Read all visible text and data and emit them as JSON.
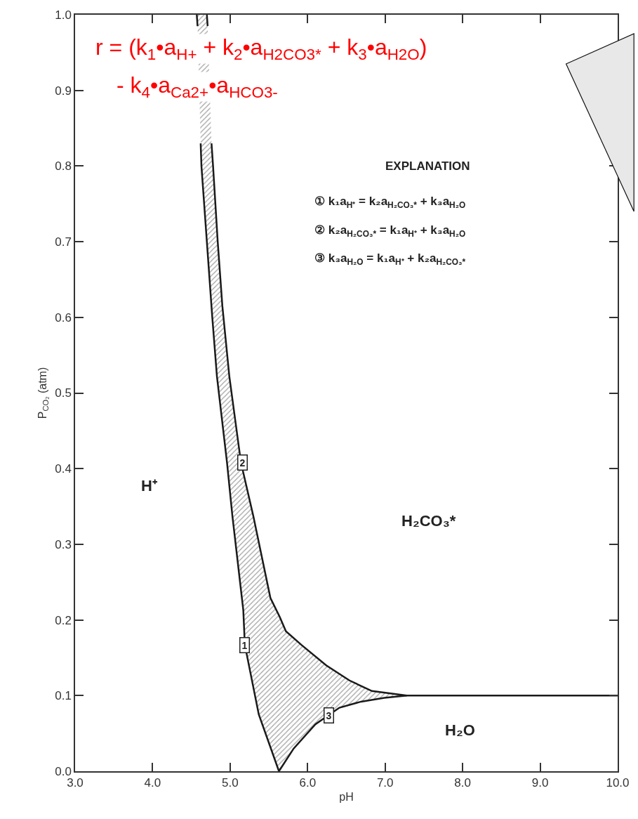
{
  "chart_data": {
    "type": "line",
    "xlabel": "pH",
    "ylabel": "P$_{CO₂}$ (atm)",
    "xlim": [
      3.0,
      10.0
    ],
    "ylim": [
      0.0,
      1.0
    ],
    "xticks": [
      {
        "value": 3,
        "label": "3.0"
      },
      {
        "value": 4,
        "label": "4.0"
      },
      {
        "value": 5,
        "label": "5.0"
      },
      {
        "value": 6,
        "label": "6.0"
      },
      {
        "value": 7,
        "label": "7.0"
      },
      {
        "value": 8,
        "label": "8.0"
      },
      {
        "value": 9,
        "label": "9.0"
      },
      {
        "value": 10,
        "label": "10.0"
      }
    ],
    "yticks": [
      {
        "value": 0,
        "label": "0.0"
      },
      0.1,
      0.2,
      0.3,
      0.4,
      0.5,
      0.6,
      0.7,
      0.8,
      0.9,
      {
        "value": 1,
        "label": "1.0"
      }
    ],
    "marker": "none",
    "line_style": "solid",
    "series": [
      {
        "color": "#1a1a1a",
        "x": [
          4.57,
          4.58,
          4.6,
          4.62,
          4.63,
          4.7,
          4.77,
          4.83,
          4.96,
          5.03,
          5.17,
          5.19,
          5.37,
          5.63
        ],
        "values": [
          1.0,
          0.985,
          null,
          0.83,
          0.8,
          0.7,
          0.6,
          0.522,
          0.408,
          0.337,
          0.213,
          0.167,
          0.075,
          0.0
        ]
      },
      {
        "color": "#1a1a1a",
        "x": [
          4.7,
          4.71,
          4.73,
          4.76,
          4.78,
          4.84,
          4.9,
          4.99,
          5.14,
          5.3,
          5.52,
          5.64,
          5.72,
          5.92,
          6.24,
          6.54,
          6.83,
          7.28,
          8.0,
          9.0,
          10.0
        ],
        "values": [
          1.0,
          0.985,
          null,
          0.83,
          0.8,
          0.7,
          0.615,
          0.522,
          0.408,
          0.337,
          0.229,
          0.204,
          0.185,
          0.167,
          0.14,
          0.12,
          0.106,
          0.1,
          0.1,
          0.1,
          0.1
        ]
      },
      {
        "color": "#1a1a1a",
        "x": [
          5.63,
          5.82,
          6.1,
          6.41,
          6.69,
          6.99,
          7.28
        ],
        "values": [
          0.0,
          0.03,
          0.062,
          0.084,
          0.092,
          0.097,
          0.1
        ]
      }
    ],
    "annotations": [
      "H⁺",
      "H₂CO₃*",
      "H₂O",
      {
        "text": "1",
        "x": 5.19,
        "y": 0.167
      },
      {
        "text": "2",
        "x": 5.16,
        "y": 0.408
      },
      {
        "text": "3",
        "x": 6.27,
        "y": 0.074
      },
      "EXPLANATION",
      "① k₁a$_{H⁺}$ = k₂a$_{H₂CO₃*}$ + k₃a$_{H₂O}$",
      "② k₂a$_{H₂CO₃*}$ = k₁a$_{H⁺}$ + k₃a$_{H₂O}$",
      "③ k₃a$_{H₂O}$ = k₁a$_{H⁺}$ + k₂a$_{H₂CO₃*}$",
      "r = (k$_{1}$•a$_{H+}$ + k$_{2}$•a$_{H2CO3*}$ + k$_{3}$•a$_{H2O}$)",
      "- k$_{4}$•a$_{Ca2+}$•a$_{HCO3-}$"
    ]
  }
}
